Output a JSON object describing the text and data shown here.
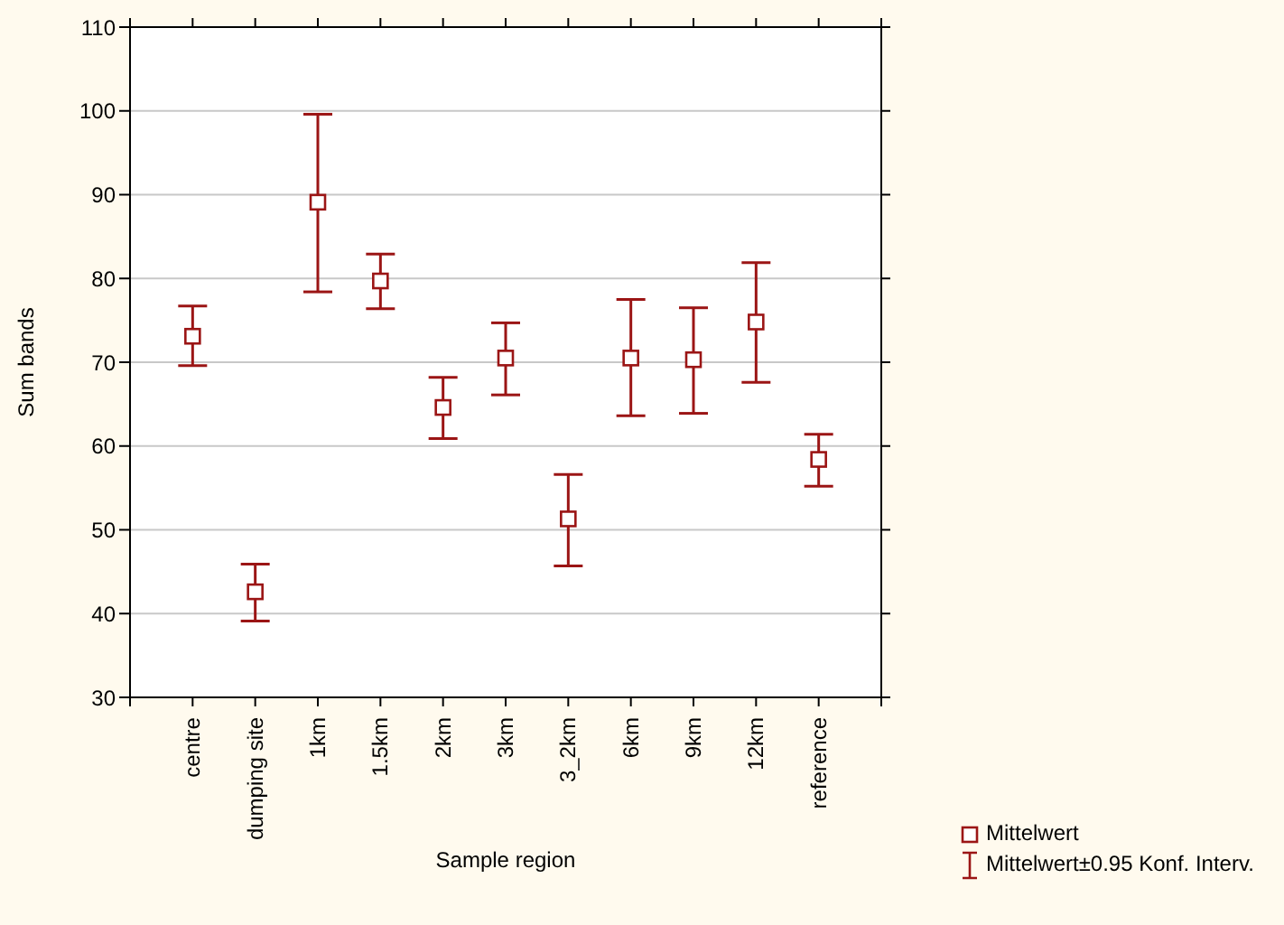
{
  "chart_data": {
    "type": "scatter",
    "xlabel": "Sample region",
    "ylabel": "Sum bands",
    "categories": [
      null,
      "centre",
      "dumping site",
      "1km",
      "1.5km",
      "2km",
      "3km",
      "3_2km",
      "6km",
      "9km",
      "12km",
      "reference",
      null
    ],
    "series": [
      {
        "name": "Mittelwert",
        "color": "#9b1515",
        "values": [
          null,
          73.1,
          42.6,
          89.1,
          79.7,
          64.6,
          70.5,
          51.3,
          70.5,
          70.3,
          74.8,
          58.4,
          null
        ],
        "errors": [
          null,
          [
            69.6,
            76.7
          ],
          [
            39.1,
            45.9
          ],
          [
            78.4,
            99.6
          ],
          [
            76.4,
            82.9
          ],
          [
            60.9,
            68.2
          ],
          [
            66.1,
            74.7
          ],
          [
            45.7,
            56.6
          ],
          [
            63.6,
            77.5
          ],
          [
            63.9,
            76.5
          ],
          [
            67.6,
            81.9
          ],
          [
            55.2,
            61.4
          ],
          null
        ]
      }
    ],
    "annotations": [
      "Mittelwert±0.95 Konf. Interv."
    ],
    "ylim": [
      30,
      110
    ],
    "yticks": [
      30,
      40,
      50,
      60,
      70,
      80,
      90,
      100,
      110
    ],
    "grid": "y",
    "legend": "bottom right",
    "marker": "square"
  }
}
